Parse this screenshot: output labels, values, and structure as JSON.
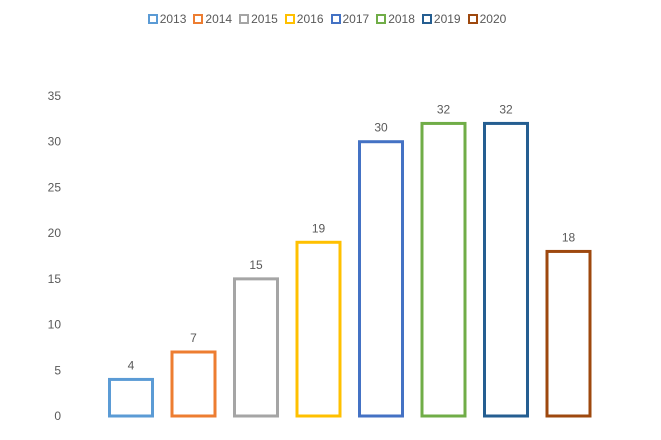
{
  "chart_data": {
    "type": "bar",
    "series": [
      {
        "name": "2013",
        "values": [
          4
        ],
        "color": "#5B9BD5"
      },
      {
        "name": "2014",
        "values": [
          7
        ],
        "color": "#ED7D31"
      },
      {
        "name": "2015",
        "values": [
          15
        ],
        "color": "#A5A5A5"
      },
      {
        "name": "2016",
        "values": [
          19
        ],
        "color": "#FFC000"
      },
      {
        "name": "2017",
        "values": [
          30
        ],
        "color": "#4472C4"
      },
      {
        "name": "2018",
        "values": [
          32
        ],
        "color": "#70AD47"
      },
      {
        "name": "2019",
        "values": [
          32
        ],
        "color": "#255E91"
      },
      {
        "name": "2020",
        "values": [
          18
        ],
        "color": "#9E480E"
      }
    ],
    "ylim": [
      0,
      35
    ],
    "yticks": [
      0,
      5,
      10,
      15,
      20,
      25,
      30,
      35
    ],
    "grid": false,
    "legend": "top",
    "data_labels": true
  }
}
